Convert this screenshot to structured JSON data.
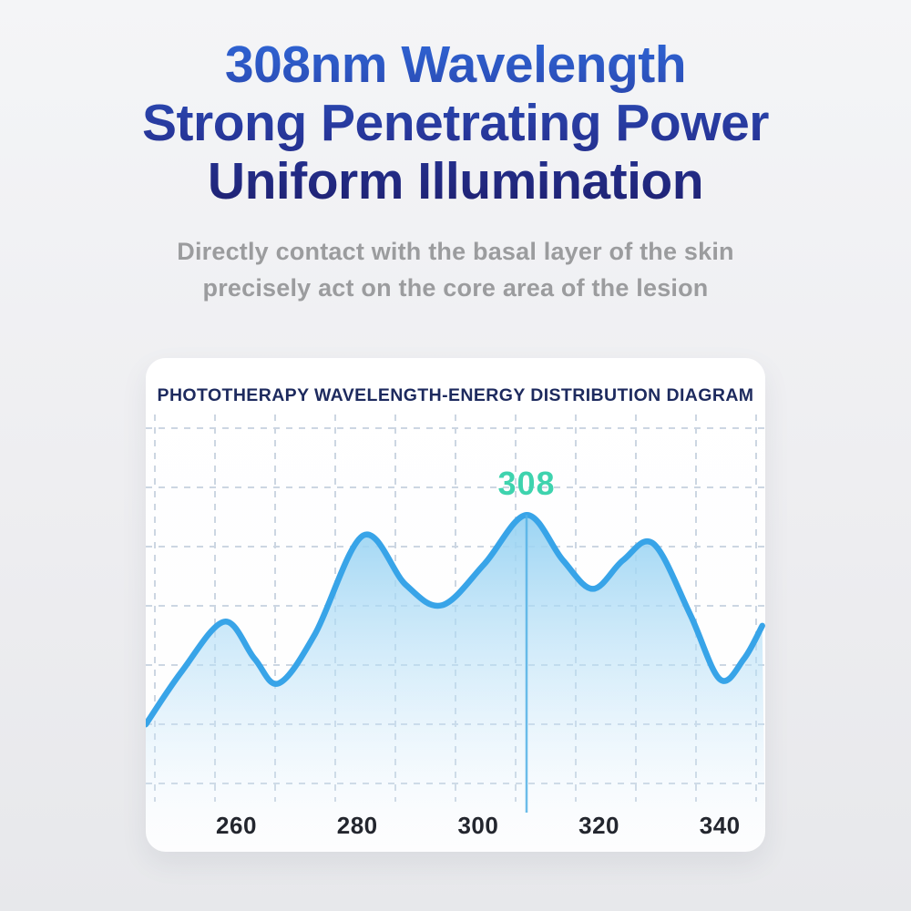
{
  "page": {
    "title_lines": [
      "308nm Wavelength",
      "Strong Penetrating Power",
      "Uniform Illumination"
    ],
    "subtitle_lines": [
      "Directly contact with the basal layer of the skin",
      "precisely act on the core area of the lesion"
    ]
  },
  "colors": {
    "title_gradient_top": "#2f66d6",
    "title_gradient_bottom": "#1e2070",
    "subtitle_text": "#9b9c9e",
    "chart_title_text": "#1d2a5e",
    "curve": "#38a4e8",
    "area_fill_top": "#96d2f2",
    "area_fill_bottom": "#eefaff",
    "grid": "#ccd6e2",
    "marker_line": "#54b2e6",
    "annotation": "#3ed3ae",
    "tick_label": "#23262e"
  },
  "chart_data": {
    "type": "area",
    "title": "PHOTOTHERAPY WAVELENGTH-ENERGY DISTRIBUTION DIAGRAM",
    "xlabel": "",
    "ylabel": "",
    "grid": "dashed",
    "legend": "none",
    "x_range": [
      245,
      347.5
    ],
    "y_range": [
      0,
      1
    ],
    "x_ticks": [
      260,
      280,
      300,
      320,
      340
    ],
    "series": [
      {
        "name": "energy-distribution",
        "points": [
          {
            "x": 245,
            "y": 0.31
          },
          {
            "x": 251,
            "y": 0.44
          },
          {
            "x": 258,
            "y": 0.56
          },
          {
            "x": 263,
            "y": 0.47
          },
          {
            "x": 267,
            "y": 0.41
          },
          {
            "x": 273,
            "y": 0.53
          },
          {
            "x": 281,
            "y": 0.77
          },
          {
            "x": 288,
            "y": 0.65
          },
          {
            "x": 294,
            "y": 0.6
          },
          {
            "x": 301,
            "y": 0.7
          },
          {
            "x": 308,
            "y": 0.82
          },
          {
            "x": 314,
            "y": 0.71
          },
          {
            "x": 319,
            "y": 0.64
          },
          {
            "x": 324,
            "y": 0.71
          },
          {
            "x": 329,
            "y": 0.75
          },
          {
            "x": 335,
            "y": 0.58
          },
          {
            "x": 340,
            "y": 0.42
          },
          {
            "x": 344,
            "y": 0.47
          },
          {
            "x": 347,
            "y": 0.55
          }
        ]
      }
    ],
    "annotation": {
      "label": "308",
      "x": 308,
      "y": 0.82
    }
  }
}
